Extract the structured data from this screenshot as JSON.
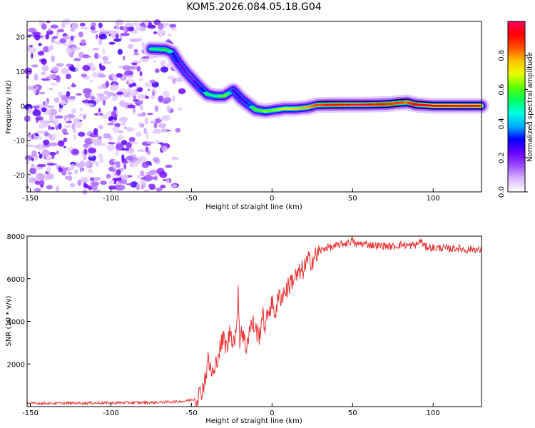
{
  "title": "KOM5.2026.084.05.18.G04",
  "chart_data": [
    {
      "type": "heatmap",
      "xlabel": "Height of straight line (km)",
      "ylabel": "Frequency (Hz)",
      "xlim": [
        -152,
        130
      ],
      "ylim": [
        -25,
        24.5
      ],
      "xticks": [
        -150,
        -100,
        -50,
        0,
        50,
        100
      ],
      "yticks": [
        20,
        10,
        0,
        -10,
        -20
      ],
      "colorbar": {
        "label": "Normalized spectral amplitude",
        "range": [
          0,
          1
        ],
        "ticks": [
          "0.0",
          "0.2",
          "0.4",
          "0.6",
          "0.8"
        ],
        "colors": [
          "#ffffff",
          "#d9b8ff",
          "#9b4dff",
          "#6a00ff",
          "#0000ff",
          "#00b0ff",
          "#00ffe0",
          "#00ff60",
          "#60ff00",
          "#e8ff00",
          "#ffc000",
          "#ff5000",
          "#ff0000",
          "#ff0060"
        ]
      },
      "noise_region": {
        "x": [
          -152,
          -52
        ],
        "y": [
          -25,
          24.5
        ]
      },
      "ridge": [
        {
          "x": -75,
          "f": 16.5,
          "a": 0.5
        },
        {
          "x": -66,
          "f": 16.3,
          "a": 0.55
        },
        {
          "x": -62,
          "f": 15.5,
          "a": 0.45
        },
        {
          "x": -58,
          "f": 12.5,
          "a": 0.35
        },
        {
          "x": -53,
          "f": 9.5,
          "a": 0.3
        },
        {
          "x": -48,
          "f": 7.0,
          "a": 0.3
        },
        {
          "x": -44,
          "f": 5.0,
          "a": 0.4
        },
        {
          "x": -40,
          "f": 3.3,
          "a": 0.5
        },
        {
          "x": -35,
          "f": 2.8,
          "a": 0.5
        },
        {
          "x": -30,
          "f": 2.8,
          "a": 0.6
        },
        {
          "x": -24,
          "f": 4.5,
          "a": 0.4
        },
        {
          "x": -19,
          "f": 2.0,
          "a": 0.35
        },
        {
          "x": -15,
          "f": 0.5,
          "a": 0.4
        },
        {
          "x": -10,
          "f": -1.2,
          "a": 0.55
        },
        {
          "x": -4,
          "f": -1.6,
          "a": 0.6
        },
        {
          "x": 2,
          "f": -1.2,
          "a": 0.6
        },
        {
          "x": 8,
          "f": -0.8,
          "a": 0.65
        },
        {
          "x": 15,
          "f": -0.8,
          "a": 0.7
        },
        {
          "x": 22,
          "f": -0.5,
          "a": 0.75
        },
        {
          "x": 28,
          "f": 0.2,
          "a": 0.85
        },
        {
          "x": 40,
          "f": 0.3,
          "a": 0.9
        },
        {
          "x": 55,
          "f": 0.3,
          "a": 0.95
        },
        {
          "x": 65,
          "f": 0.4,
          "a": 0.9
        },
        {
          "x": 72,
          "f": 0.5,
          "a": 0.85
        },
        {
          "x": 78,
          "f": 0.8,
          "a": 0.85
        },
        {
          "x": 84,
          "f": 1.0,
          "a": 0.8
        },
        {
          "x": 90,
          "f": 0.3,
          "a": 0.9
        },
        {
          "x": 100,
          "f": 0.0,
          "a": 0.95
        },
        {
          "x": 110,
          "f": 0.0,
          "a": 0.95
        },
        {
          "x": 120,
          "f": 0.0,
          "a": 0.95
        },
        {
          "x": 130,
          "f": 0.0,
          "a": 0.95
        }
      ]
    },
    {
      "type": "line",
      "xlabel": "Height of straight line (km)",
      "ylabel": "SNR (10 * v/v)",
      "xlim": [
        -152,
        130
      ],
      "ylim": [
        0,
        8000
      ],
      "xticks": [
        -150,
        -100,
        -50,
        0,
        50,
        100
      ],
      "yticks": [
        8000,
        6000,
        4000,
        2000
      ],
      "color": "#ee3333",
      "series": [
        {
          "x": [
            -152,
            -130,
            -110,
            -90,
            -70,
            -55,
            -48,
            -45,
            -43,
            -41,
            -40,
            -38,
            -36,
            -34,
            -32,
            -30,
            -28,
            -26,
            -24,
            -22,
            -21,
            -20,
            -19,
            -18,
            -16,
            -14,
            -12,
            -10,
            -8,
            -6,
            -4,
            -2,
            0,
            2,
            4,
            6,
            8,
            10,
            12,
            15,
            18,
            20,
            22,
            25,
            28,
            30,
            32,
            35,
            38,
            40,
            42,
            45,
            48,
            50,
            52,
            55,
            60,
            65,
            70,
            75,
            80,
            85,
            90,
            92,
            95,
            100,
            105,
            110,
            115,
            120,
            125,
            130
          ],
          "y": [
            150,
            160,
            170,
            180,
            200,
            250,
            350,
            550,
            900,
            1500,
            2200,
            1700,
            1500,
            2300,
            2800,
            3200,
            2700,
            3600,
            3100,
            3400,
            5700,
            3000,
            3800,
            3300,
            2800,
            3600,
            3900,
            3600,
            3300,
            4300,
            3700,
            4600,
            4800,
            4400,
            5100,
            5200,
            5400,
            5600,
            5900,
            6100,
            6300,
            6500,
            6800,
            6900,
            7100,
            7300,
            7400,
            7500,
            7450,
            7550,
            7600,
            7650,
            7700,
            7800,
            7600,
            7650,
            7600,
            7550,
            7550,
            7500,
            7600,
            7550,
            7600,
            7800,
            7500,
            7450,
            7450,
            7400,
            7450,
            7350,
            7400,
            7300
          ]
        }
      ]
    }
  ]
}
